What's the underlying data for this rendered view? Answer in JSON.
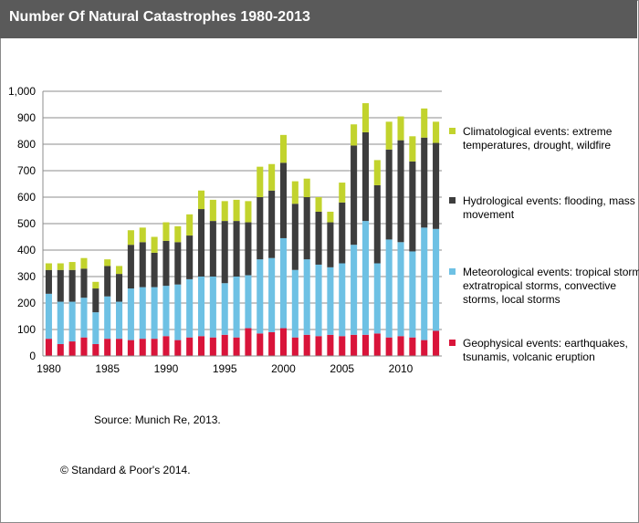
{
  "header": {
    "title": "Number Of Natural Catastrophes  1980-2013"
  },
  "footer": {
    "source": "Source: Munich Re, 2013.",
    "copyright": "© Standard & Poor's 2014."
  },
  "chart_data": {
    "type": "bar",
    "stacked": true,
    "title": "Number Of Natural Catastrophes  1980-2013",
    "xlabel": "",
    "ylabel": "",
    "ylim": [
      0,
      1000
    ],
    "yticks": [
      0,
      100,
      200,
      300,
      400,
      500,
      600,
      700,
      800,
      900,
      1000
    ],
    "ytick_labels": [
      "0",
      "100",
      "200",
      "300",
      "400",
      "500",
      "600",
      "700",
      "800",
      "900",
      "1,000"
    ],
    "xtick_labels": [
      "1980",
      "1985",
      "1990",
      "1995",
      "2000",
      "2005",
      "2010"
    ],
    "grid": true,
    "legend_position": "right",
    "categories": [
      1980,
      1981,
      1982,
      1983,
      1984,
      1985,
      1986,
      1987,
      1988,
      1989,
      1990,
      1991,
      1992,
      1993,
      1994,
      1995,
      1996,
      1997,
      1998,
      1999,
      2000,
      2001,
      2002,
      2003,
      2004,
      2005,
      2006,
      2007,
      2008,
      2009,
      2010,
      2011,
      2012,
      2013
    ],
    "series": [
      {
        "name": "Geophysical events: earthquakes, tsunamis, volcanic eruption",
        "color": "#d9143a",
        "values": [
          65,
          45,
          55,
          70,
          45,
          65,
          65,
          60,
          65,
          65,
          75,
          60,
          70,
          75,
          70,
          80,
          70,
          105,
          85,
          90,
          105,
          70,
          80,
          75,
          80,
          75,
          80,
          80,
          85,
          70,
          75,
          70,
          60,
          95
        ]
      },
      {
        "name": "Meteorological events: tropical storms, extratropical storms, convective storms, local storms",
        "color": "#6ec1e4",
        "values": [
          170,
          160,
          150,
          150,
          120,
          160,
          140,
          195,
          195,
          195,
          190,
          210,
          220,
          225,
          230,
          195,
          230,
          200,
          280,
          280,
          340,
          255,
          285,
          270,
          255,
          275,
          340,
          430,
          265,
          370,
          355,
          325,
          425,
          385
        ]
      },
      {
        "name": "Hydrological events: flooding, mass movement",
        "color": "#3d3d3d",
        "values": [
          90,
          120,
          120,
          110,
          90,
          115,
          105,
          165,
          170,
          130,
          170,
          160,
          165,
          255,
          210,
          235,
          210,
          200,
          235,
          255,
          285,
          250,
          235,
          200,
          170,
          230,
          375,
          335,
          295,
          340,
          385,
          340,
          340,
          325
        ]
      },
      {
        "name": "Climatological events: extreme temperatures, drought, wildfire",
        "color": "#c2d32d",
        "values": [
          25,
          25,
          30,
          40,
          25,
          25,
          30,
          55,
          55,
          60,
          70,
          60,
          80,
          70,
          80,
          75,
          80,
          80,
          115,
          100,
          105,
          85,
          70,
          55,
          40,
          75,
          80,
          110,
          95,
          105,
          90,
          95,
          110,
          80
        ]
      }
    ]
  }
}
